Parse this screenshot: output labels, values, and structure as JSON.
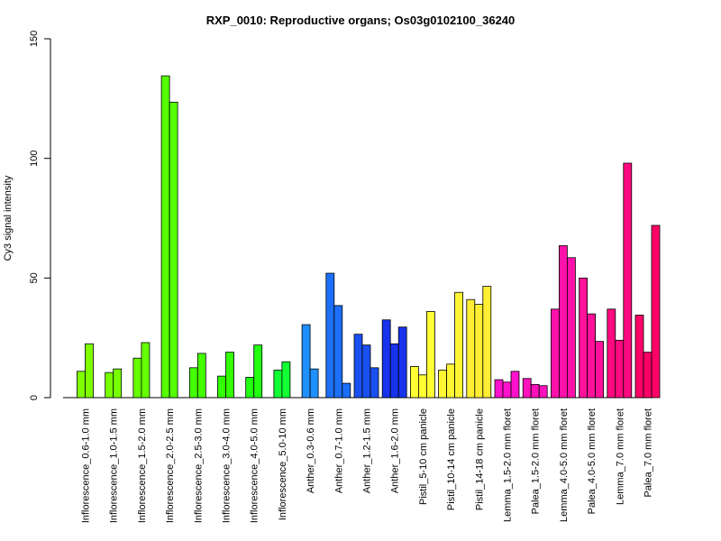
{
  "chart_data": {
    "type": "bar",
    "title": "RXP_0010: Reproductive organs; Os03g0102100_36240",
    "xlabel": "",
    "ylabel": "Cy3 signal intensity",
    "ylim": [
      0,
      150
    ],
    "yticks": [
      0,
      50,
      100,
      150
    ],
    "grid": false,
    "legend": "none",
    "groups": [
      {
        "label": "Inflorescence_0.6-1.0 mm",
        "color": "#7FFF00",
        "values": [
          11,
          22.5
        ]
      },
      {
        "label": "Inflorescence_1.0-1.5 mm",
        "color": "#77FF00",
        "values": [
          10.5,
          12
        ]
      },
      {
        "label": "Inflorescence_1.5-2.0 mm",
        "color": "#66FF00",
        "values": [
          16.5,
          23
        ]
      },
      {
        "label": "Inflorescence_2.0-2.5 mm",
        "color": "#55FF00",
        "values": [
          134.5,
          123.5
        ]
      },
      {
        "label": "Inflorescence_2.5-3.0 mm",
        "color": "#44FF00",
        "values": [
          12.5,
          18.5
        ]
      },
      {
        "label": "Inflorescence_3.0-4.0 mm",
        "color": "#33FF00",
        "values": [
          9,
          19
        ]
      },
      {
        "label": "Inflorescence_4.0-5.0 mm",
        "color": "#22FF11",
        "values": [
          8.5,
          22
        ]
      },
      {
        "label": "Inflorescence_5.0-10 mm",
        "color": "#11FF33",
        "values": [
          11.5,
          15
        ]
      },
      {
        "label": "Anther_0.3-0.6 mm",
        "color": "#1E90FF",
        "values": [
          30.5,
          12
        ]
      },
      {
        "label": "Anther_0.7-1.0 mm",
        "color": "#1C6FF8",
        "values": [
          52,
          38.5,
          6
        ]
      },
      {
        "label": "Anther_1.2-1.5 mm",
        "color": "#1A4FF0",
        "values": [
          26.5,
          22,
          12.5
        ]
      },
      {
        "label": "Anther_1.6-2.0 mm",
        "color": "#1833EE",
        "values": [
          32.5,
          22.5,
          29.5
        ]
      },
      {
        "label": "Pistil_5-10 cm panicle",
        "color": "#FFFF33",
        "values": [
          13,
          9.5,
          36
        ]
      },
      {
        "label": "Pistil_10-14 cm panicle",
        "color": "#FFF733",
        "values": [
          11.5,
          14,
          44
        ]
      },
      {
        "label": "Pistil_14-18 cm panicle",
        "color": "#FFEE33",
        "values": [
          41,
          39,
          46.5
        ]
      },
      {
        "label": "Lemma_1.5-2.0 mm floret",
        "color": "#FF11CC",
        "values": [
          7.5,
          6.5,
          11
        ]
      },
      {
        "label": "Palea_1.5-2.0 mm floret",
        "color": "#FF11BB",
        "values": [
          8,
          5.5,
          5
        ]
      },
      {
        "label": "Lemma_4.0-5.0 mm floret",
        "color": "#FF11AA",
        "values": [
          37,
          63.5,
          58.5
        ]
      },
      {
        "label": "Palea_4.0-5.0 mm floret",
        "color": "#FF1199",
        "values": [
          50,
          35,
          23.5
        ]
      },
      {
        "label": "Lemma_7.0 mm floret",
        "color": "#FF0A80",
        "values": [
          37,
          24,
          98
        ]
      },
      {
        "label": "Palea_7.0 mm floret",
        "color": "#FF0066",
        "values": [
          34.5,
          19,
          72
        ]
      }
    ]
  }
}
